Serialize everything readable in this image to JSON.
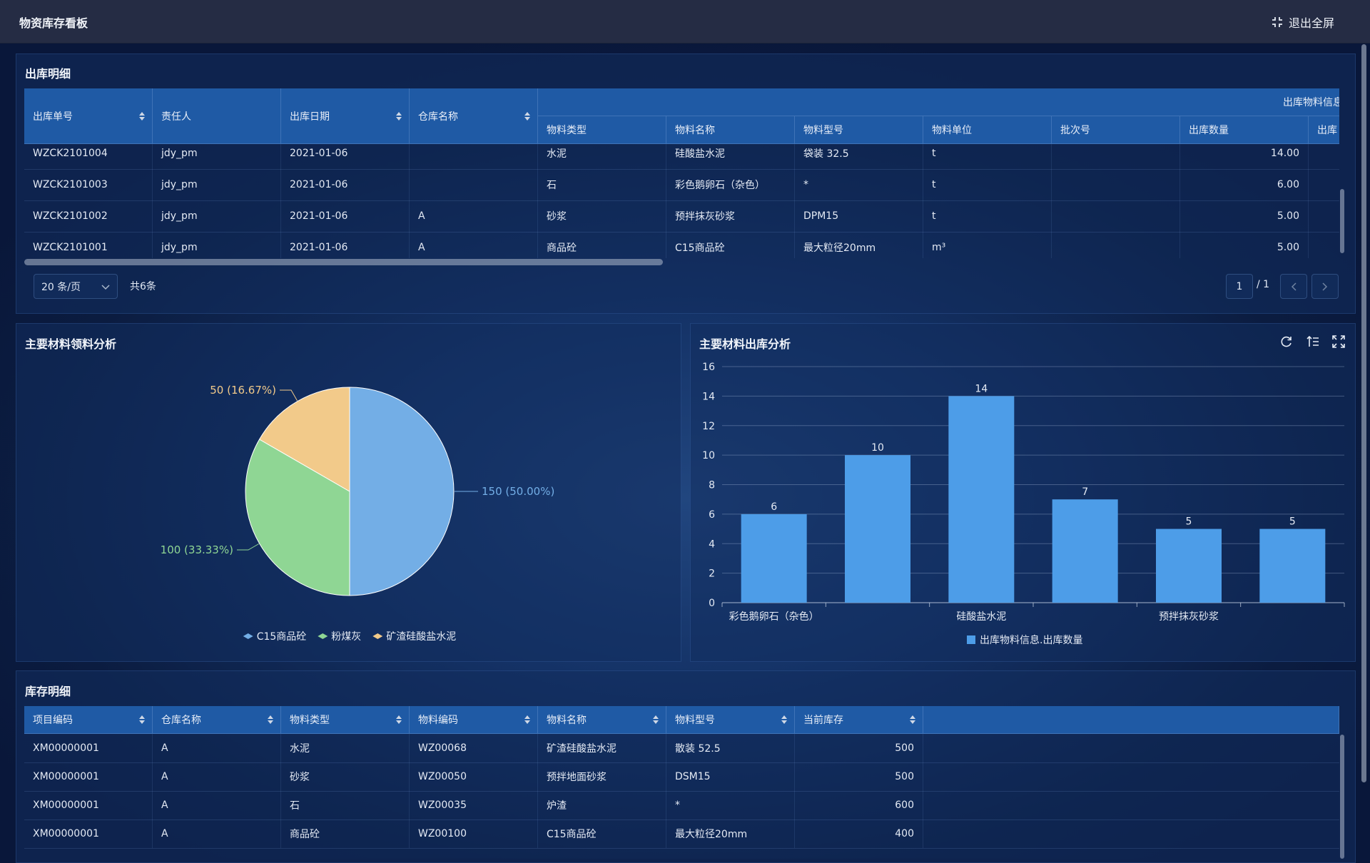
{
  "header": {
    "title": "物资库存看板",
    "exit_button": "退出全屏"
  },
  "outbound": {
    "title": "出库明细",
    "group_header": "出库物料信息",
    "columns": [
      "出库单号",
      "责任人",
      "出库日期",
      "仓库名称",
      "物料类型",
      "物料名称",
      "物料型号",
      "物料单位",
      "批次号",
      "出库数量",
      "出库"
    ],
    "sortable": [
      true,
      false,
      true,
      true,
      false,
      false,
      false,
      false,
      false,
      false,
      false
    ],
    "rows": [
      [
        "WZCK2101004",
        "jdy_pm",
        "2021-01-06",
        null,
        "水泥",
        "硅酸盐水泥",
        "袋装 32.5",
        "t",
        null,
        "14.00",
        null
      ],
      [
        "WZCK2101003",
        "jdy_pm",
        "2021-01-06",
        null,
        "石",
        "彩色鹅卵石（杂色）",
        "*",
        "t",
        null,
        "6.00",
        null
      ],
      [
        "WZCK2101002",
        "jdy_pm",
        "2021-01-06",
        "A",
        "砂浆",
        "预拌抹灰砂浆",
        "DPM15",
        "t",
        null,
        "5.00",
        null
      ],
      [
        "WZCK2101001",
        "jdy_pm",
        "2021-01-06",
        "A",
        "商品砼",
        "C15商品砼",
        "最大粒径20mm",
        "m³",
        null,
        "5.00",
        null
      ]
    ],
    "pagination": {
      "page_size": "20 条/页",
      "total": "共6条",
      "page": "1",
      "pages": "/ 1"
    }
  },
  "chart_data": [
    {
      "type": "pie",
      "title": "主要材料领料分析",
      "categories": [
        "C15商品砼",
        "粉煤灰",
        "矿渣硅酸盐水泥"
      ],
      "values": [
        150,
        100,
        50
      ],
      "value_labels": [
        "150 (50.00%)",
        "100 (33.33%)",
        "50 (16.67%)"
      ],
      "colors": [
        "#73aee6",
        "#8fd694",
        "#f2ca8a"
      ]
    },
    {
      "type": "bar",
      "title": "主要材料出库分析",
      "categories": [
        "彩色鹅卵石（杂色）",
        null,
        "硅酸盐水泥",
        null,
        "预拌抹灰砂浆",
        null
      ],
      "series": [
        {
          "name": "出库物料信息.出库数量",
          "color": "#4d9de8",
          "values": [
            6,
            10,
            14,
            7,
            5,
            5
          ]
        }
      ],
      "ylim": [
        0,
        16
      ],
      "yticks": [
        0,
        2,
        4,
        6,
        8,
        10,
        12,
        14,
        16
      ],
      "grid": true
    }
  ],
  "inventory": {
    "title": "库存明细",
    "columns": [
      "项目编码",
      "仓库名称",
      "物料类型",
      "物料编码",
      "物料名称",
      "物料型号",
      "当前库存"
    ],
    "sortable": [
      true,
      true,
      true,
      true,
      true,
      true,
      true
    ],
    "rows": [
      [
        "XM00000001",
        "A",
        "水泥",
        "WZ00068",
        "矿渣硅酸盐水泥",
        "散装 52.5",
        "500"
      ],
      [
        "XM00000001",
        "A",
        "砂浆",
        "WZ00050",
        "预拌地面砂浆",
        "DSM15",
        "500"
      ],
      [
        "XM00000001",
        "A",
        "石",
        "WZ00035",
        "炉渣",
        "*",
        "600"
      ],
      [
        "XM00000001",
        "A",
        "商品砼",
        "WZ00100",
        "C15商品砼",
        "最大粒径20mm",
        "400"
      ]
    ]
  }
}
